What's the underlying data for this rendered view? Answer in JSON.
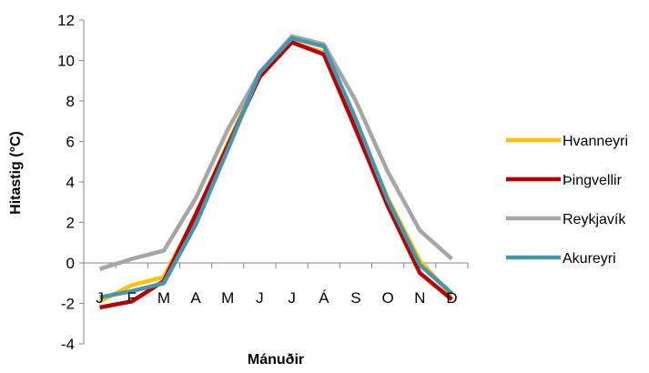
{
  "chart_data": {
    "type": "line",
    "title": "",
    "xlabel": "Mánuðir",
    "ylabel": "Hitastig (°C)",
    "categories": [
      "J",
      "F",
      "M",
      "A",
      "M",
      "J",
      "J",
      "Á",
      "S",
      "O",
      "N",
      "D"
    ],
    "ylim": [
      -4,
      12
    ],
    "yticks": [
      -4,
      -2,
      0,
      2,
      4,
      6,
      8,
      10,
      12
    ],
    "ytick_labels": [
      "-4",
      "-2",
      "0",
      "2",
      "4",
      "6",
      "8",
      "10",
      "12"
    ],
    "grid": false,
    "legend_position": "right",
    "series": [
      {
        "name": "Hvanneyri",
        "color": "#FFC000",
        "values": [
          -1.9,
          -1.1,
          -0.7,
          2.3,
          5.9,
          9.3,
          10.9,
          10.4,
          6.9,
          3.2,
          0.1,
          -1.6
        ]
      },
      {
        "name": "Þingvellir",
        "color": "#C00000",
        "values": [
          -2.2,
          -1.9,
          -0.9,
          2.4,
          5.8,
          9.2,
          10.9,
          10.3,
          6.6,
          2.8,
          -0.5,
          -1.8
        ]
      },
      {
        "name": "Reykjavík",
        "color": "#A6A6A6",
        "values": [
          -0.3,
          0.2,
          0.6,
          3.2,
          6.6,
          9.4,
          11.2,
          10.8,
          8.0,
          4.5,
          1.6,
          0.2
        ]
      },
      {
        "name": "Akureyri",
        "color": "#4198AF",
        "values": [
          -1.7,
          -1.4,
          -1.0,
          1.9,
          5.6,
          9.4,
          11.1,
          10.7,
          7.1,
          3.1,
          -0.1,
          -1.5
        ]
      }
    ]
  }
}
